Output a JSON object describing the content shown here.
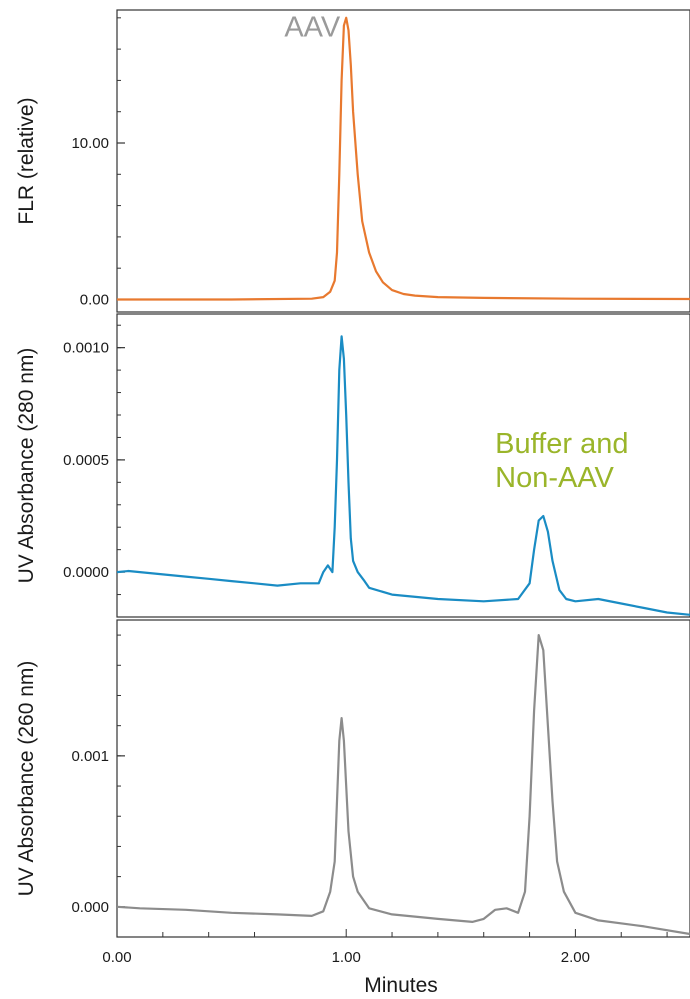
{
  "chart_data": {
    "type": "line",
    "xlabel": "Minutes",
    "xlim": [
      0,
      2.5
    ],
    "xticks": [
      0,
      1,
      2
    ],
    "xtick_labels": [
      "0.00",
      "1.00",
      "2.00"
    ],
    "grid": false,
    "panels": [
      {
        "ylabel": "FLR (relative)",
        "ylim": [
          -0.8,
          18.5
        ],
        "yticks": [
          0,
          10
        ],
        "ytick_labels": [
          "0.00",
          "10.00"
        ],
        "color": "#e8792f",
        "annotation": {
          "text": "AAV",
          "color": "#9a9a9a",
          "x": 0.73,
          "y": 16.8
        },
        "series": [
          {
            "x": [
              0.0,
              0.5,
              0.85,
              0.9,
              0.93,
              0.95,
              0.96,
              0.97,
              0.98,
              0.99,
              1.0,
              1.01,
              1.02,
              1.03,
              1.05,
              1.07,
              1.1,
              1.13,
              1.16,
              1.2,
              1.25,
              1.3,
              1.4,
              1.6,
              2.0,
              2.5
            ],
            "y": [
              0.0,
              0.0,
              0.05,
              0.15,
              0.5,
              1.2,
              3.0,
              8.0,
              14.0,
              17.5,
              18.0,
              17.2,
              15.0,
              12.0,
              8.0,
              5.0,
              3.0,
              1.8,
              1.1,
              0.6,
              0.35,
              0.25,
              0.15,
              0.1,
              0.05,
              0.03
            ]
          }
        ]
      },
      {
        "ylabel": "UV Absorbance (280 nm)",
        "ylim": [
          -0.0002,
          0.00115
        ],
        "yticks": [
          0,
          0.0005,
          0.001
        ],
        "ytick_labels": [
          "0.0000",
          "0.0005",
          "0.0010"
        ],
        "color": "#1a8cc4",
        "annotation": {
          "text": "Buffer and\nNon-AAV",
          "color": "#9ab52a",
          "x": 1.65,
          "y": 0.00053
        },
        "series": [
          {
            "x": [
              0.0,
              0.05,
              0.1,
              0.2,
              0.3,
              0.4,
              0.5,
              0.6,
              0.7,
              0.8,
              0.88,
              0.9,
              0.92,
              0.94,
              0.95,
              0.96,
              0.97,
              0.98,
              0.99,
              1.0,
              1.01,
              1.02,
              1.03,
              1.05,
              1.08,
              1.1,
              1.2,
              1.4,
              1.6,
              1.75,
              1.8,
              1.82,
              1.84,
              1.86,
              1.88,
              1.9,
              1.93,
              1.96,
              2.0,
              2.1,
              2.2,
              2.3,
              2.4,
              2.5
            ],
            "y": [
              0.0,
              5e-06,
              0.0,
              -1e-05,
              -2e-05,
              -3e-05,
              -4e-05,
              -5e-05,
              -6e-05,
              -5e-05,
              -5e-05,
              0.0,
              3e-05,
              0.0,
              0.0002,
              0.0005,
              0.0009,
              0.00105,
              0.00095,
              0.0007,
              0.0004,
              0.00015,
              5e-05,
              0.0,
              -4e-05,
              -7e-05,
              -0.0001,
              -0.00012,
              -0.00013,
              -0.00012,
              -5e-05,
              0.0001,
              0.00023,
              0.00025,
              0.00018,
              5e-05,
              -8e-05,
              -0.00012,
              -0.00013,
              -0.00012,
              -0.00014,
              -0.00016,
              -0.00018,
              -0.00019
            ]
          }
        ]
      },
      {
        "ylabel": "UV Absorbance (260 nm)",
        "ylim": [
          -0.0002,
          0.0019
        ],
        "yticks": [
          0,
          0.001
        ],
        "ytick_labels": [
          "0.000",
          "0.001"
        ],
        "color": "#8c8c8c",
        "series": [
          {
            "x": [
              0.0,
              0.1,
              0.3,
              0.5,
              0.7,
              0.85,
              0.9,
              0.93,
              0.95,
              0.96,
              0.97,
              0.98,
              0.99,
              1.0,
              1.01,
              1.03,
              1.05,
              1.1,
              1.2,
              1.4,
              1.55,
              1.6,
              1.65,
              1.7,
              1.75,
              1.78,
              1.8,
              1.82,
              1.84,
              1.86,
              1.88,
              1.9,
              1.92,
              1.95,
              2.0,
              2.1,
              2.3,
              2.5
            ],
            "y": [
              0.0,
              -1e-05,
              -2e-05,
              -4e-05,
              -5e-05,
              -6e-05,
              -3e-05,
              0.0001,
              0.0003,
              0.0007,
              0.0011,
              0.00125,
              0.0011,
              0.0008,
              0.0005,
              0.0002,
              0.0001,
              -1e-05,
              -5e-05,
              -8e-05,
              -0.0001,
              -8e-05,
              -2e-05,
              -1e-05,
              -4e-05,
              0.0001,
              0.0006,
              0.0013,
              0.0018,
              0.0017,
              0.0012,
              0.0007,
              0.0003,
              0.0001,
              -4e-05,
              -9e-05,
              -0.00013,
              -0.00018
            ]
          }
        ]
      }
    ]
  }
}
